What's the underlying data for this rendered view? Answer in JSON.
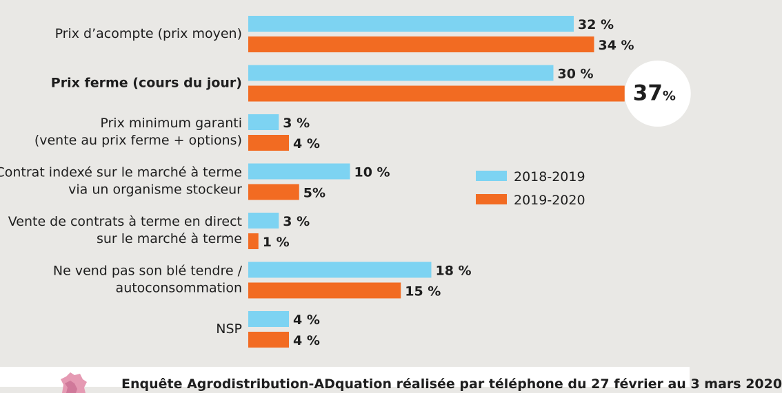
{
  "chart_data": {
    "type": "bar",
    "orientation": "horizontal",
    "categories": [
      [
        "Prix d’acompte (prix moyen)"
      ],
      [
        "Prix ferme (cours du jour)"
      ],
      [
        "Prix minimum garanti",
        "(vente au prix ferme + options)"
      ],
      [
        "Contrat indexé sur le marché à terme",
        "via un organisme stockeur"
      ],
      [
        "Vente de contrats à terme en direct",
        "sur le marché à terme"
      ],
      [
        "Ne vend pas son blé tendre /",
        "autoconsommation"
      ],
      [
        "NSP"
      ]
    ],
    "bold_category": 1,
    "series": [
      {
        "name": "2018-2019",
        "color": "#7dd3f2",
        "values": [
          32,
          30,
          3,
          10,
          3,
          18,
          4
        ],
        "labels": [
          "32 %",
          "30 %",
          "3 %",
          "10 %",
          "3 %",
          "18 %",
          "4 %"
        ]
      },
      {
        "name": "2019-2020",
        "color": "#f26b22",
        "values": [
          34,
          37,
          4,
          5,
          1,
          15,
          4
        ],
        "labels": [
          "34 %",
          "37",
          "4 %",
          "5%",
          "1 %",
          "15 %",
          "4 %"
        ]
      }
    ],
    "highlight": {
      "series": 1,
      "category": 1,
      "number": "37",
      "unit": "%"
    },
    "legend_position": "right",
    "grid": false
  },
  "footer": {
    "text": "Enquête Agrodistribution-ADquation réalisée par téléphone du 27 février au 3 mars 2020"
  }
}
